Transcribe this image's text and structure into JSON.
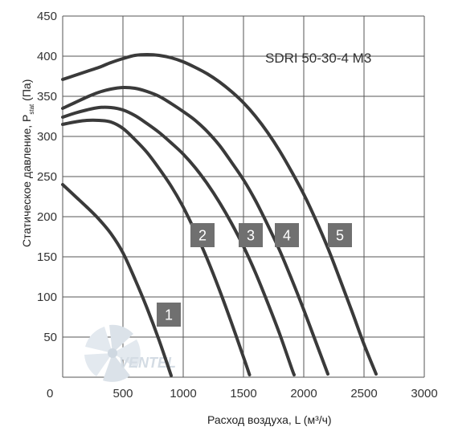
{
  "chart_data": {
    "type": "line",
    "title": "SDRI 50-30-4 M3",
    "xlabel": "Расход воздуха, L (м³/ч)",
    "ylabel_main": "Статическое давление, P",
    "ylabel_sub": "stat",
    "ylabel_unit": " (Па)",
    "xlim": [
      0,
      3000
    ],
    "ylim": [
      0,
      450
    ],
    "xticks": [
      0,
      500,
      1000,
      1500,
      2000,
      2500,
      3000
    ],
    "yticks": [
      50,
      100,
      150,
      200,
      250,
      300,
      350,
      400,
      450
    ],
    "grid": true,
    "legend": "none",
    "series": [
      {
        "label": "1",
        "label_at": [
          880,
          78
        ],
        "points": [
          [
            0,
            240
          ],
          [
            100,
            226
          ],
          [
            200,
            212
          ],
          [
            300,
            197
          ],
          [
            400,
            179
          ],
          [
            500,
            155
          ],
          [
            600,
            122
          ],
          [
            700,
            86
          ],
          [
            800,
            46
          ],
          [
            900,
            2
          ]
        ]
      },
      {
        "label": "2",
        "label_at": [
          1160,
          177
        ],
        "points": [
          [
            0,
            315
          ],
          [
            100,
            318
          ],
          [
            200,
            320
          ],
          [
            300,
            320
          ],
          [
            400,
            318
          ],
          [
            500,
            310
          ],
          [
            600,
            296
          ],
          [
            700,
            280
          ],
          [
            800,
            260
          ],
          [
            900,
            238
          ],
          [
            1000,
            212
          ],
          [
            1100,
            181
          ],
          [
            1200,
            147
          ],
          [
            1300,
            109
          ],
          [
            1400,
            68
          ],
          [
            1500,
            25
          ],
          [
            1550,
            3
          ]
        ]
      },
      {
        "label": "3",
        "label_at": [
          1560,
          177
        ],
        "points": [
          [
            0,
            324
          ],
          [
            100,
            329
          ],
          [
            200,
            333
          ],
          [
            300,
            336
          ],
          [
            400,
            336
          ],
          [
            500,
            333
          ],
          [
            600,
            326
          ],
          [
            700,
            316
          ],
          [
            800,
            305
          ],
          [
            900,
            292
          ],
          [
            1000,
            278
          ],
          [
            1100,
            261
          ],
          [
            1200,
            241
          ],
          [
            1300,
            218
          ],
          [
            1400,
            192
          ],
          [
            1500,
            163
          ],
          [
            1600,
            130
          ],
          [
            1700,
            93
          ],
          [
            1800,
            54
          ],
          [
            1900,
            11
          ],
          [
            1920,
            3
          ]
        ]
      },
      {
        "label": "4",
        "label_at": [
          1860,
          177
        ],
        "points": [
          [
            0,
            335
          ],
          [
            100,
            342
          ],
          [
            200,
            349
          ],
          [
            300,
            355
          ],
          [
            400,
            359
          ],
          [
            500,
            361
          ],
          [
            600,
            360
          ],
          [
            700,
            356
          ],
          [
            800,
            350
          ],
          [
            900,
            341
          ],
          [
            1000,
            331
          ],
          [
            1100,
            320
          ],
          [
            1200,
            306
          ],
          [
            1300,
            289
          ],
          [
            1400,
            268
          ],
          [
            1500,
            246
          ],
          [
            1600,
            220
          ],
          [
            1700,
            190
          ],
          [
            1800,
            158
          ],
          [
            1900,
            122
          ],
          [
            2000,
            84
          ],
          [
            2100,
            44
          ],
          [
            2200,
            4
          ]
        ]
      },
      {
        "label": "5",
        "label_at": [
          2300,
          177
        ],
        "points": [
          [
            0,
            371
          ],
          [
            100,
            376
          ],
          [
            200,
            381
          ],
          [
            300,
            386
          ],
          [
            400,
            392
          ],
          [
            500,
            397
          ],
          [
            600,
            401
          ],
          [
            700,
            402
          ],
          [
            800,
            401
          ],
          [
            900,
            398
          ],
          [
            1000,
            393
          ],
          [
            1100,
            386
          ],
          [
            1200,
            378
          ],
          [
            1300,
            368
          ],
          [
            1400,
            356
          ],
          [
            1500,
            342
          ],
          [
            1600,
            325
          ],
          [
            1700,
            305
          ],
          [
            1800,
            282
          ],
          [
            1900,
            256
          ],
          [
            2000,
            228
          ],
          [
            2100,
            196
          ],
          [
            2200,
            161
          ],
          [
            2300,
            122
          ],
          [
            2400,
            82
          ],
          [
            2500,
            41
          ],
          [
            2600,
            4
          ]
        ]
      }
    ],
    "watermark": "VENTEL"
  }
}
